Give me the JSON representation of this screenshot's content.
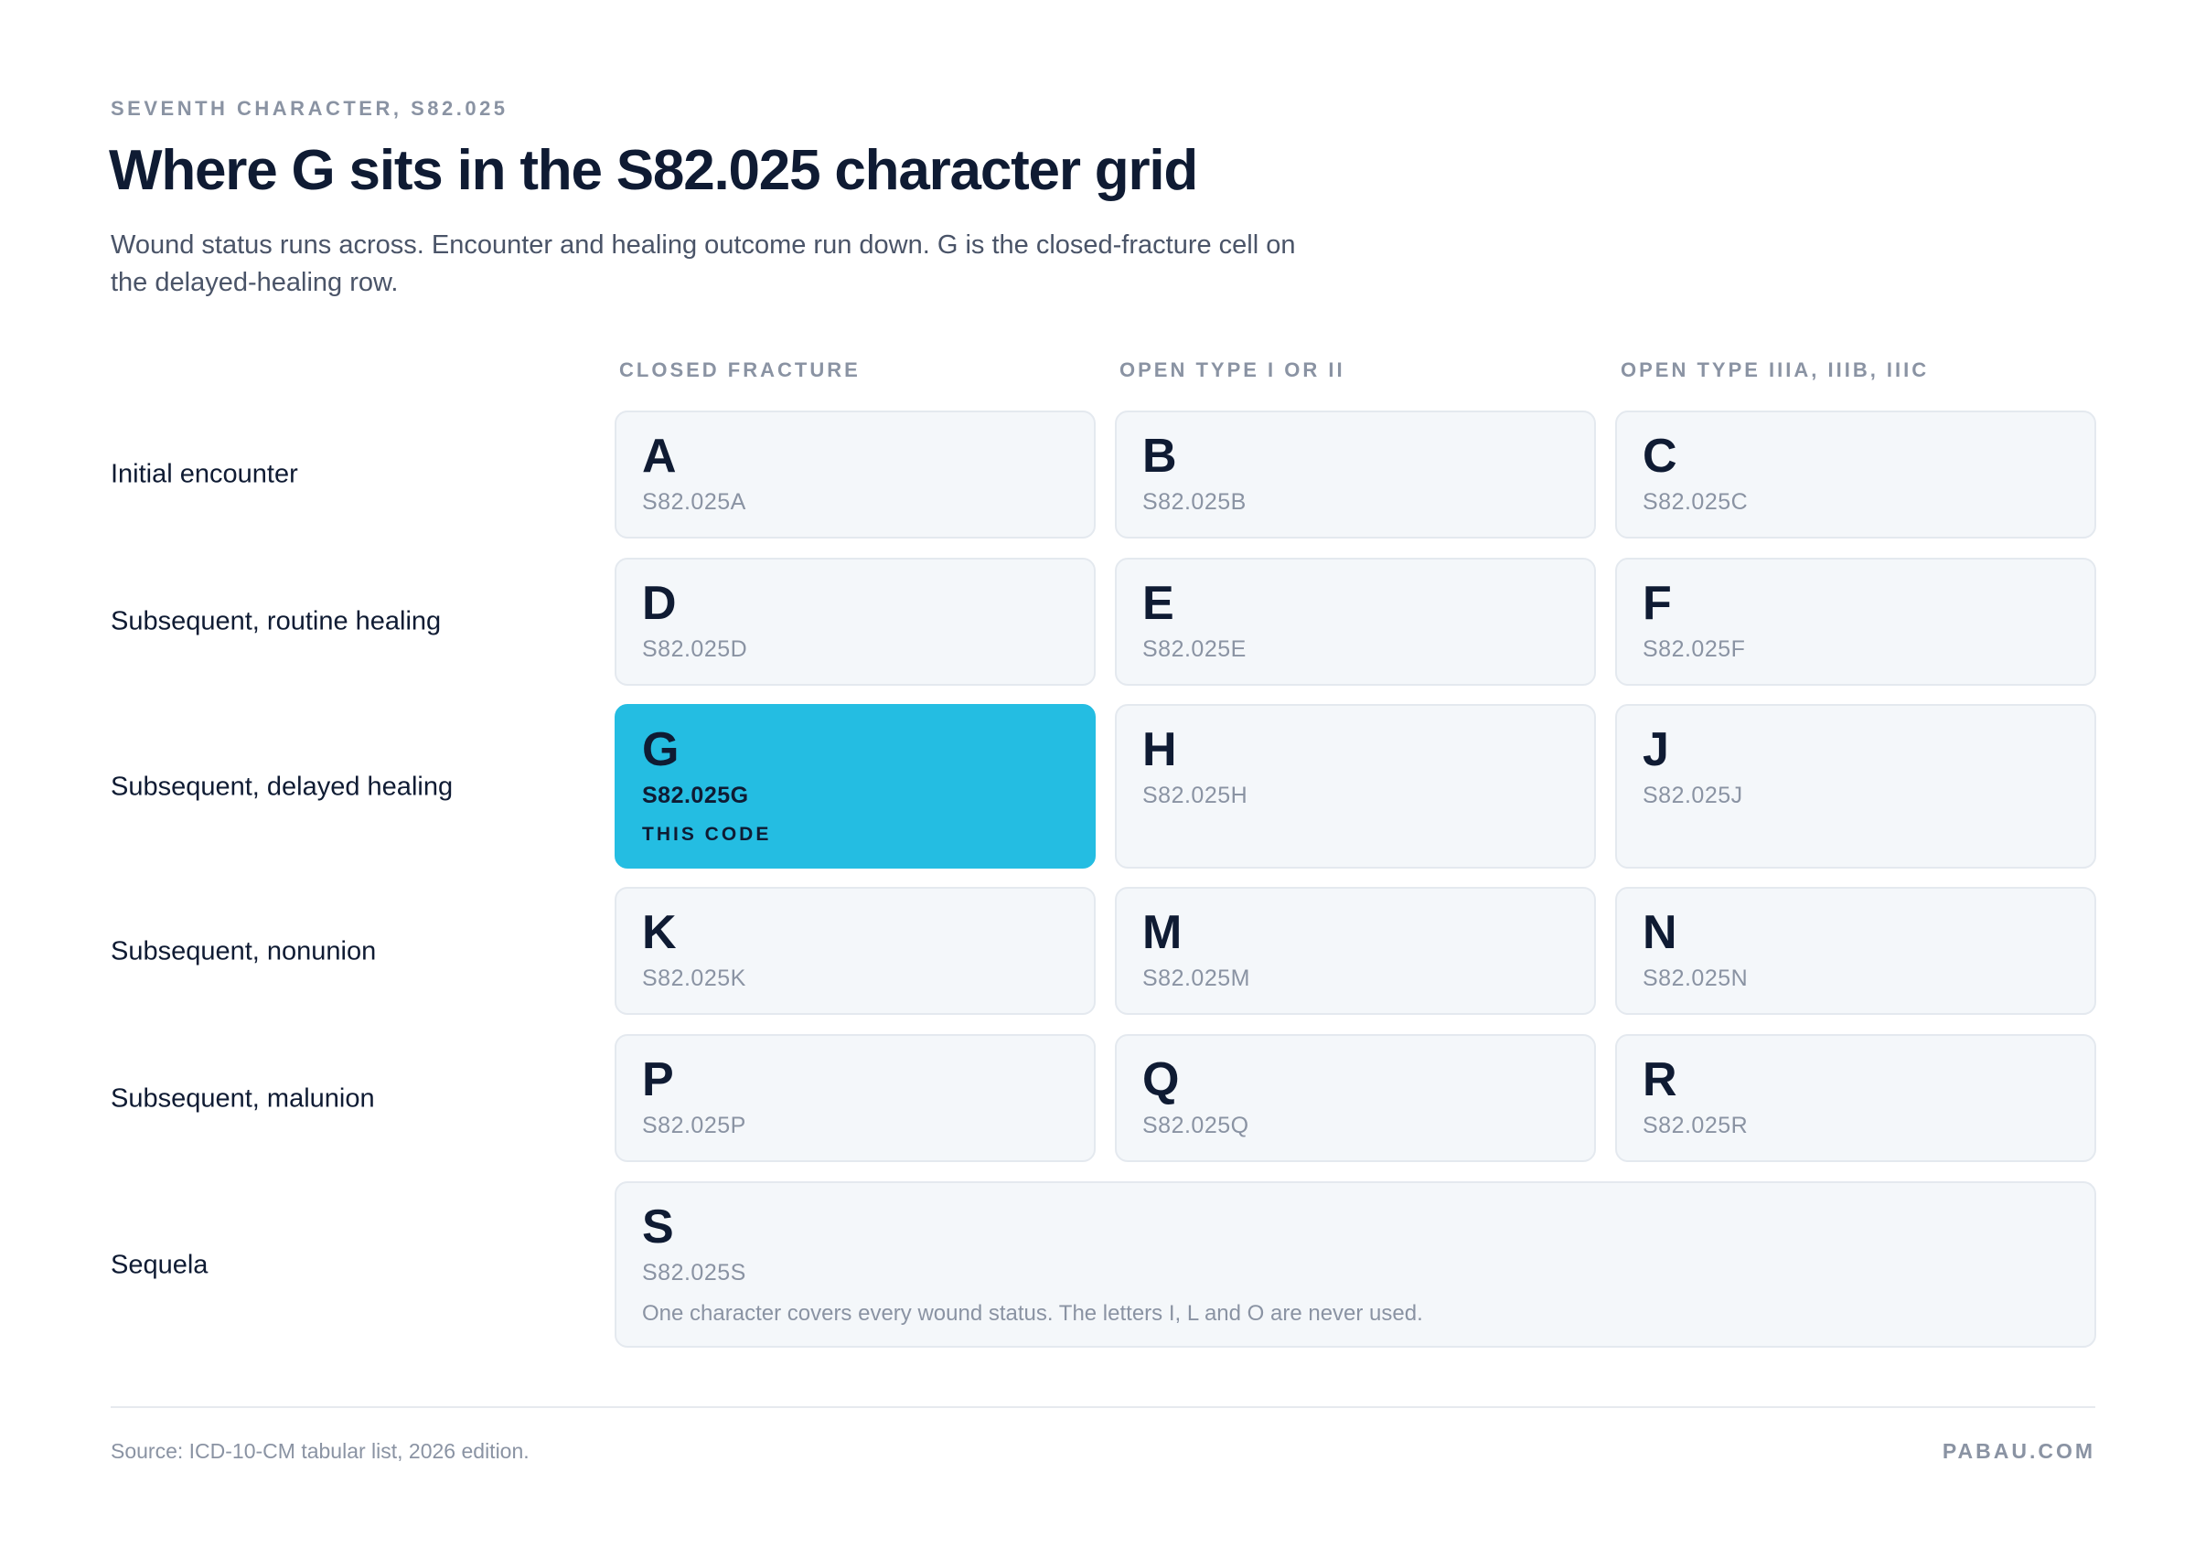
{
  "header": {
    "eyebrow": "SEVENTH CHARACTER, S82.025",
    "title": "Where G sits in the S82.025 character grid",
    "subtitle": "Wound status runs across. Encounter and healing outcome run down. G is the closed-fracture cell on the delayed-healing row."
  },
  "columns": [
    "CLOSED FRACTURE",
    "OPEN TYPE I OR II",
    "OPEN TYPE IIIA, IIIB, IIIC"
  ],
  "rows": [
    "Initial encounter",
    "Subsequent, routine healing",
    "Subsequent, delayed healing",
    "Subsequent, nonunion",
    "Subsequent, malunion",
    "Sequela"
  ],
  "cells": {
    "r0": [
      {
        "letter": "A",
        "code": "S82.025A"
      },
      {
        "letter": "B",
        "code": "S82.025B"
      },
      {
        "letter": "C",
        "code": "S82.025C"
      }
    ],
    "r1": [
      {
        "letter": "D",
        "code": "S82.025D"
      },
      {
        "letter": "E",
        "code": "S82.025E"
      },
      {
        "letter": "F",
        "code": "S82.025F"
      }
    ],
    "r2": [
      {
        "letter": "G",
        "code": "S82.025G",
        "tag": "THIS CODE"
      },
      {
        "letter": "H",
        "code": "S82.025H"
      },
      {
        "letter": "J",
        "code": "S82.025J"
      }
    ],
    "r3": [
      {
        "letter": "K",
        "code": "S82.025K"
      },
      {
        "letter": "M",
        "code": "S82.025M"
      },
      {
        "letter": "N",
        "code": "S82.025N"
      }
    ],
    "r4": [
      {
        "letter": "P",
        "code": "S82.025P"
      },
      {
        "letter": "Q",
        "code": "S82.025Q"
      },
      {
        "letter": "R",
        "code": "S82.025R"
      }
    ],
    "sequela": {
      "letter": "S",
      "code": "S82.025S",
      "note": "One character covers every wound status. The letters I, L and O are never used."
    }
  },
  "colors": {
    "highlight": "#24bde2",
    "cell_bg": "#f4f7fa",
    "text_dark": "#0f1b33",
    "text_muted": "#8a93a3"
  },
  "footer": {
    "source": "Source: ICD-10-CM tabular list, 2026 edition.",
    "brand": "PABAU.COM"
  }
}
